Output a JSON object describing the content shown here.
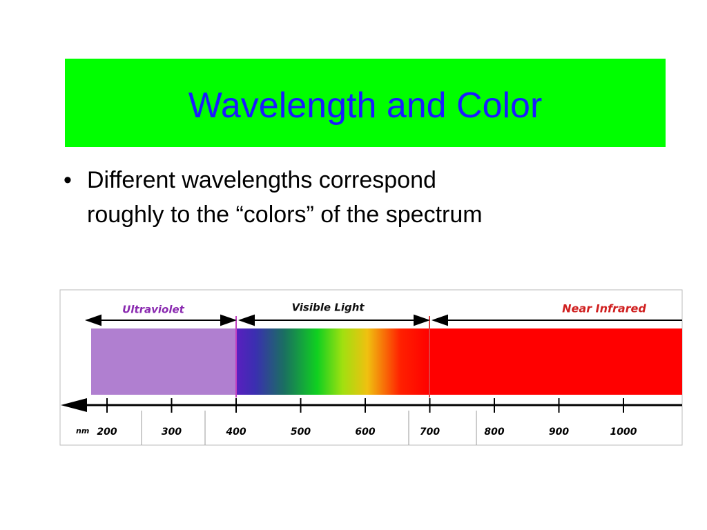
{
  "title": "Wavelength and Color",
  "bullet": {
    "lines": [
      "Different wavelengths correspond",
      "roughly to the “colors” of the spectrum"
    ]
  },
  "figure": {
    "regions": [
      "Ultraviolet",
      "Visible Light",
      "Near Infrared"
    ],
    "unit": "nm",
    "ticks": [
      200,
      300,
      400,
      500,
      600,
      700,
      800,
      900,
      1000
    ]
  }
}
